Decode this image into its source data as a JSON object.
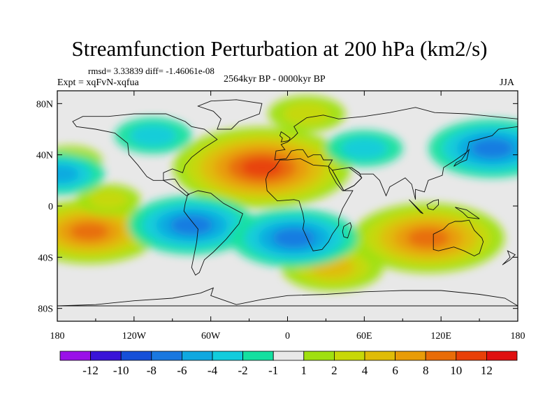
{
  "chart_data": {
    "type": "heatmap",
    "title": "Streamfunction Perturbation at 200 hPa (km2/s)",
    "subtitle_left_top": "rmsd= 3.33839 diff= -1.46061e-08",
    "subtitle_left": "Expt = xqFvN-xqfua",
    "subtitle_center": "2564kyr BP - 0000kyr BP",
    "subtitle_right": "JJA",
    "x_ticks": [
      "180",
      "120W",
      "60W",
      "0",
      "60E",
      "120E",
      "180"
    ],
    "x_values": [
      -180,
      -120,
      -60,
      0,
      60,
      120,
      180
    ],
    "y_ticks": [
      "80N",
      "40N",
      "0",
      "40S",
      "80S"
    ],
    "y_values": [
      80,
      40,
      0,
      -40,
      -80
    ],
    "xlim": [
      -180,
      180
    ],
    "ylim": [
      -90,
      90
    ],
    "colorbar": {
      "labels": [
        "-12",
        "-10",
        "-8",
        "-6",
        "-4",
        "-2",
        "-1",
        "1",
        "2",
        "4",
        "6",
        "8",
        "10",
        "12"
      ],
      "colors": [
        "#9a10e8",
        "#3a14d8",
        "#1650d8",
        "#1a78e0",
        "#10a8e0",
        "#12ccdc",
        "#14e0a0",
        "#e8e8e8",
        "#a0e010",
        "#c8d808",
        "#e0bc08",
        "#e89c08",
        "#e86c08",
        "#e84008",
        "#e01010"
      ]
    },
    "anomalies": [
      {
        "lon": -20,
        "lat": 30,
        "value": 11
      },
      {
        "lon": -155,
        "lat": -20,
        "value": 8
      },
      {
        "lon": 110,
        "lat": -25,
        "value": 9
      },
      {
        "lon": 35,
        "lat": -48,
        "value": 5
      },
      {
        "lon": 15,
        "lat": 72,
        "value": 3
      },
      {
        "lon": -140,
        "lat": 5,
        "value": 2
      },
      {
        "lon": -170,
        "lat": 35,
        "value": 2
      },
      {
        "lon": 160,
        "lat": 45,
        "value": -7
      },
      {
        "lon": -75,
        "lat": -15,
        "value": -7
      },
      {
        "lon": 5,
        "lat": -25,
        "value": -7
      },
      {
        "lon": -105,
        "lat": 55,
        "value": -3
      },
      {
        "lon": 60,
        "lat": 45,
        "value": -3
      },
      {
        "lon": -178,
        "lat": 25,
        "value": -4
      }
    ]
  }
}
